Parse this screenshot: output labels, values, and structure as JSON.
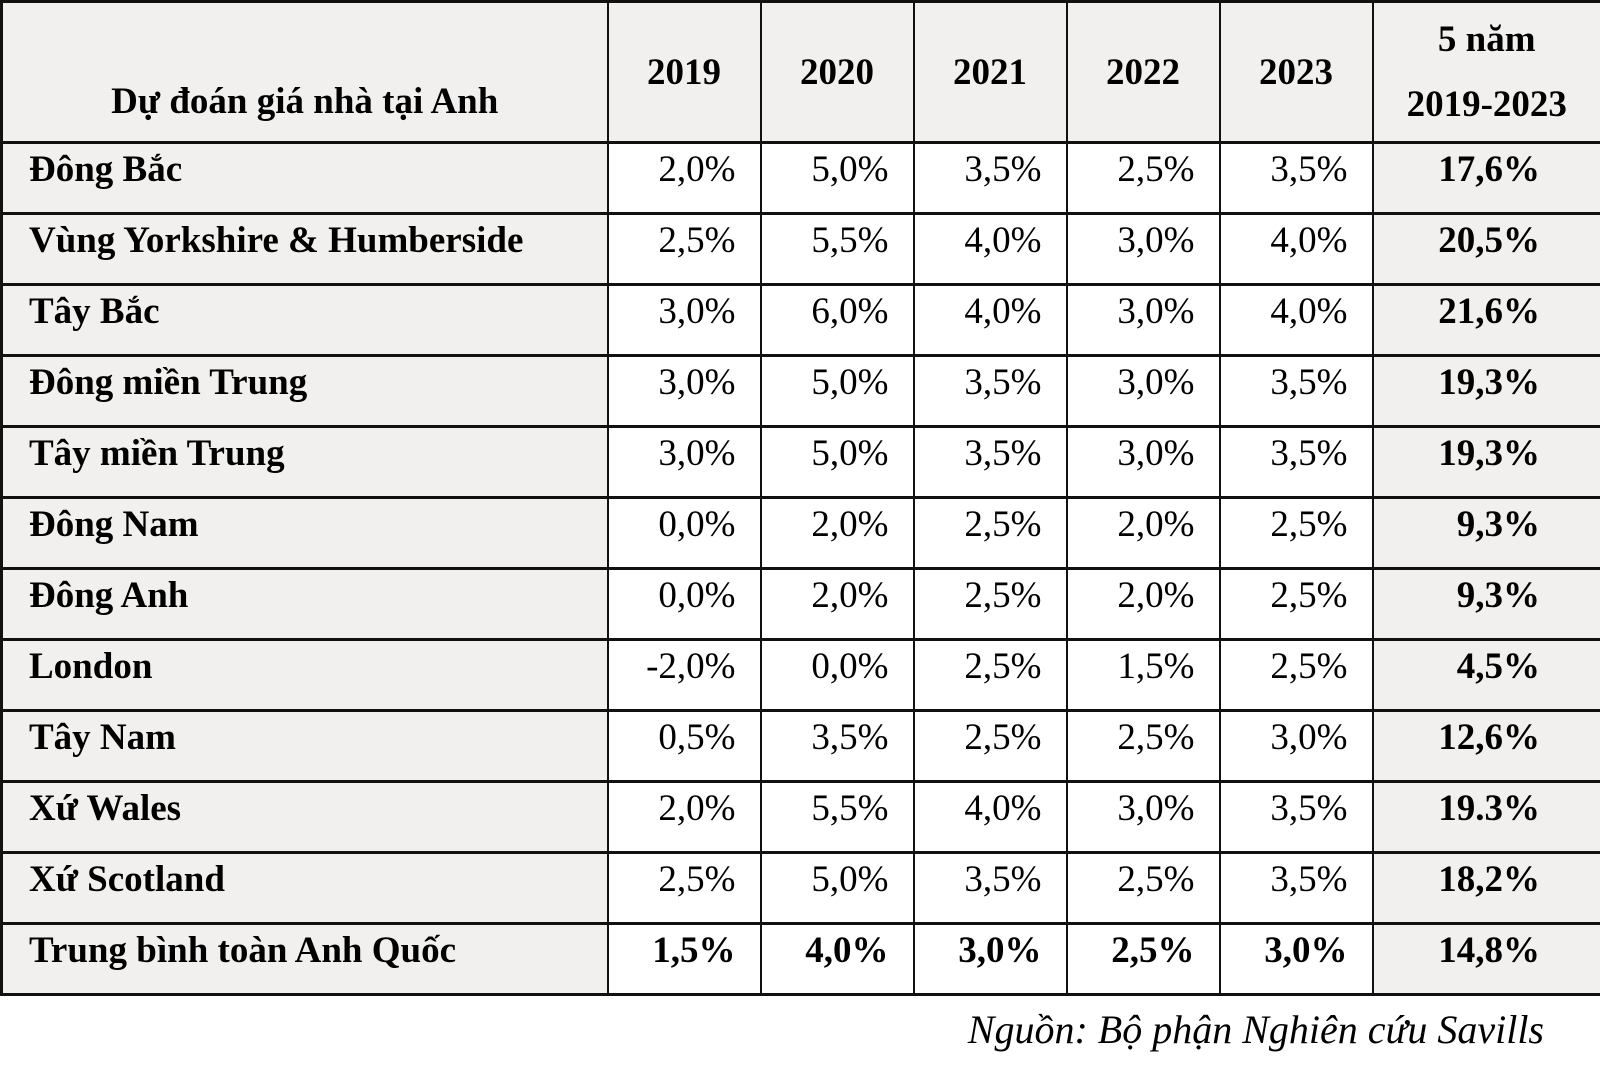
{
  "colors": {
    "shaded_cell_bg": "#f1f0ee",
    "value_cell_bg": "#ffffff",
    "border": "#111111",
    "text": "#000000"
  },
  "chart_data": {
    "type": "table",
    "title": "Dự đoán giá nhà tại Anh",
    "year_columns": [
      "2019",
      "2020",
      "2021",
      "2022",
      "2023"
    ],
    "total_column": {
      "line1": "5 năm",
      "line2": "2019-2023"
    },
    "rows": [
      {
        "label": "Đông Bắc",
        "values": [
          "2,0%",
          "5,0%",
          "3,5%",
          "2,5%",
          "3,5%"
        ],
        "total": "17,6%",
        "is_summary": false
      },
      {
        "label": "Vùng Yorkshire & Humberside",
        "values": [
          "2,5%",
          "5,5%",
          "4,0%",
          "3,0%",
          "4,0%"
        ],
        "total": "20,5%",
        "is_summary": false
      },
      {
        "label": "Tây Bắc",
        "values": [
          "3,0%",
          "6,0%",
          "4,0%",
          "3,0%",
          "4,0%"
        ],
        "total": "21,6%",
        "is_summary": false
      },
      {
        "label": "Đông miền Trung",
        "values": [
          "3,0%",
          "5,0%",
          "3,5%",
          "3,0%",
          "3,5%"
        ],
        "total": "19,3%",
        "is_summary": false
      },
      {
        "label": "Tây miền Trung",
        "values": [
          "3,0%",
          "5,0%",
          "3,5%",
          "3,0%",
          "3,5%"
        ],
        "total": "19,3%",
        "is_summary": false
      },
      {
        "label": "Đông Nam",
        "values": [
          "0,0%",
          "2,0%",
          "2,5%",
          "2,0%",
          "2,5%"
        ],
        "total": "9,3%",
        "is_summary": false
      },
      {
        "label": "Đông Anh",
        "values": [
          "0,0%",
          "2,0%",
          "2,5%",
          "2,0%",
          "2,5%"
        ],
        "total": "9,3%",
        "is_summary": false
      },
      {
        "label": "London",
        "values": [
          "-2,0%",
          "0,0%",
          "2,5%",
          "1,5%",
          "2,5%"
        ],
        "total": "4,5%",
        "is_summary": false
      },
      {
        "label": "Tây Nam",
        "values": [
          "0,5%",
          "3,5%",
          "2,5%",
          "2,5%",
          "3,0%"
        ],
        "total": "12,6%",
        "is_summary": false
      },
      {
        "label": "Xứ Wales",
        "values": [
          "2,0%",
          "5,5%",
          "4,0%",
          "3,0%",
          "3,5%"
        ],
        "total": "19.3%",
        "is_summary": false
      },
      {
        "label": "Xứ Scotland",
        "values": [
          "2,5%",
          "5,0%",
          "3,5%",
          "2,5%",
          "3,5%"
        ],
        "total": "18,2%",
        "is_summary": false
      },
      {
        "label": "Trung bình toàn Anh Quốc",
        "values": [
          "1,5%",
          "4,0%",
          "3,0%",
          "2,5%",
          "3,0%"
        ],
        "total": "14,8%",
        "is_summary": true
      }
    ],
    "source_note": "Nguồn: Bộ phận Nghiên cứu Savills"
  }
}
